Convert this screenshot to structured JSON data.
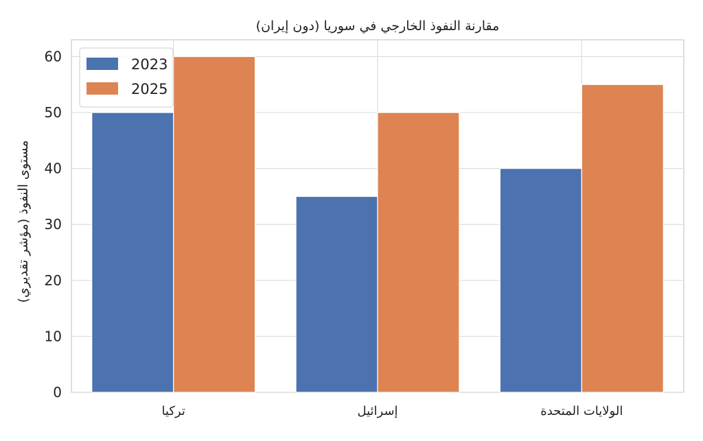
{
  "chart_data": {
    "type": "bar",
    "title": "مقارنة النفوذ الخارجي في سوريا (دون إيران)",
    "xlabel": "",
    "ylabel": "مستوى النفوذ (مؤشر تقديري)",
    "categories": [
      "تركيا",
      "إسرائيل",
      "الولايات المتحدة"
    ],
    "series": [
      {
        "name": "2023",
        "values": [
          50,
          35,
          40
        ],
        "color": "#4C72B0"
      },
      {
        "name": "2025",
        "values": [
          60,
          50,
          55
        ],
        "color": "#DD8452"
      }
    ],
    "ylim": [
      0,
      63
    ],
    "yticks": [
      0,
      10,
      20,
      30,
      40,
      50,
      60
    ],
    "grid": true,
    "legend_position": "top-left"
  }
}
